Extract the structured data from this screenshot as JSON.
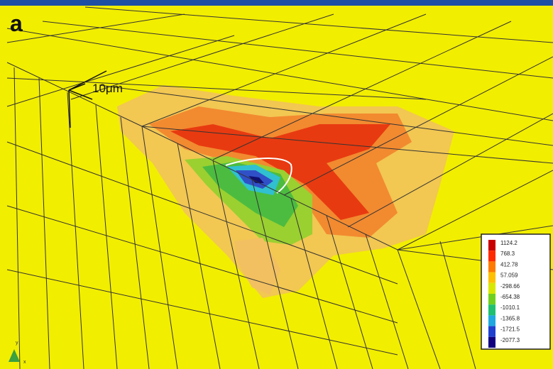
{
  "panel_label": "a",
  "scale_label": "10μm",
  "axis_labels": {
    "y": "y",
    "x": "x"
  },
  "legend": {
    "labels": [
      "1124.2",
      "768.3",
      "412.78",
      "57.059",
      "-298.66",
      "-654.38",
      "-1010.1",
      "-1365.8",
      "-1721.5",
      "-2077.3"
    ]
  }
}
